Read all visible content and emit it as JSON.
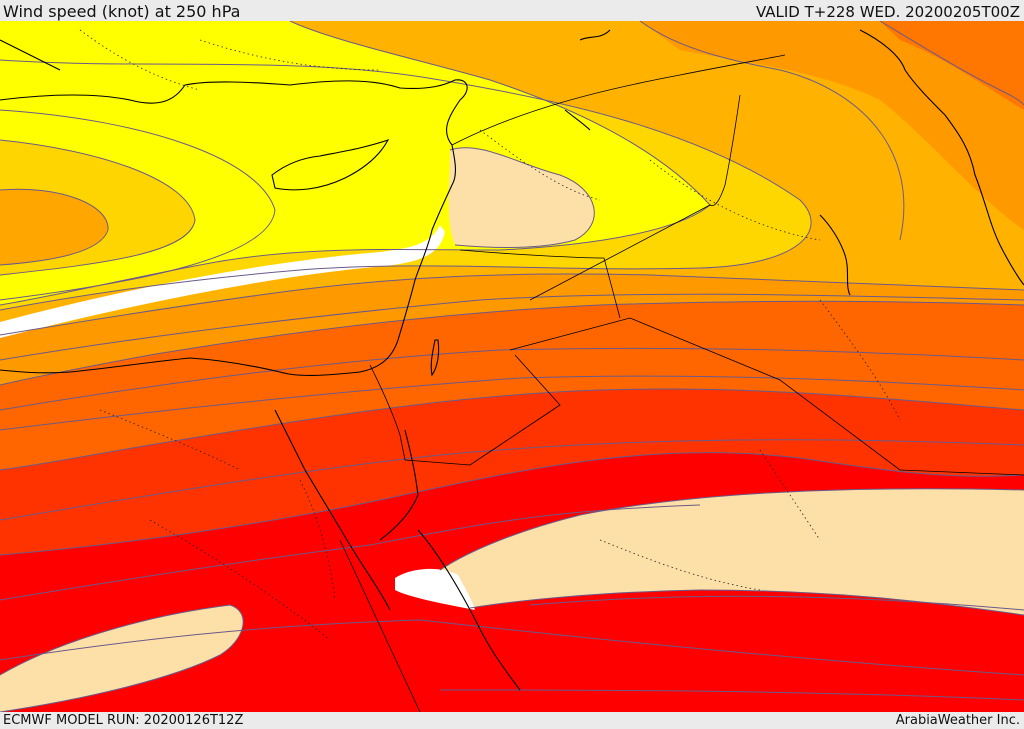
{
  "header": {
    "title": "Wind speed (knot) at 250 hPa",
    "valid": "VALID T+228 WED. 20200205T00Z"
  },
  "footer": {
    "model_run": "ECMWF MODEL RUN: 20200126T12Z",
    "credit": "ArabiaWeather Inc."
  },
  "map": {
    "colors": {
      "light_yellow": "#ffff00",
      "yellow_orange": "#ffd700",
      "orange_light": "#ffb300",
      "orange": "#ff9900",
      "dark_orange": "#ff6600",
      "red_orange": "#ff3300",
      "red": "#ff0000",
      "tan_core": "#fde0a8",
      "white_core": "#ffffff",
      "contour": "#6a5a8a",
      "coastline": "#000000"
    }
  }
}
